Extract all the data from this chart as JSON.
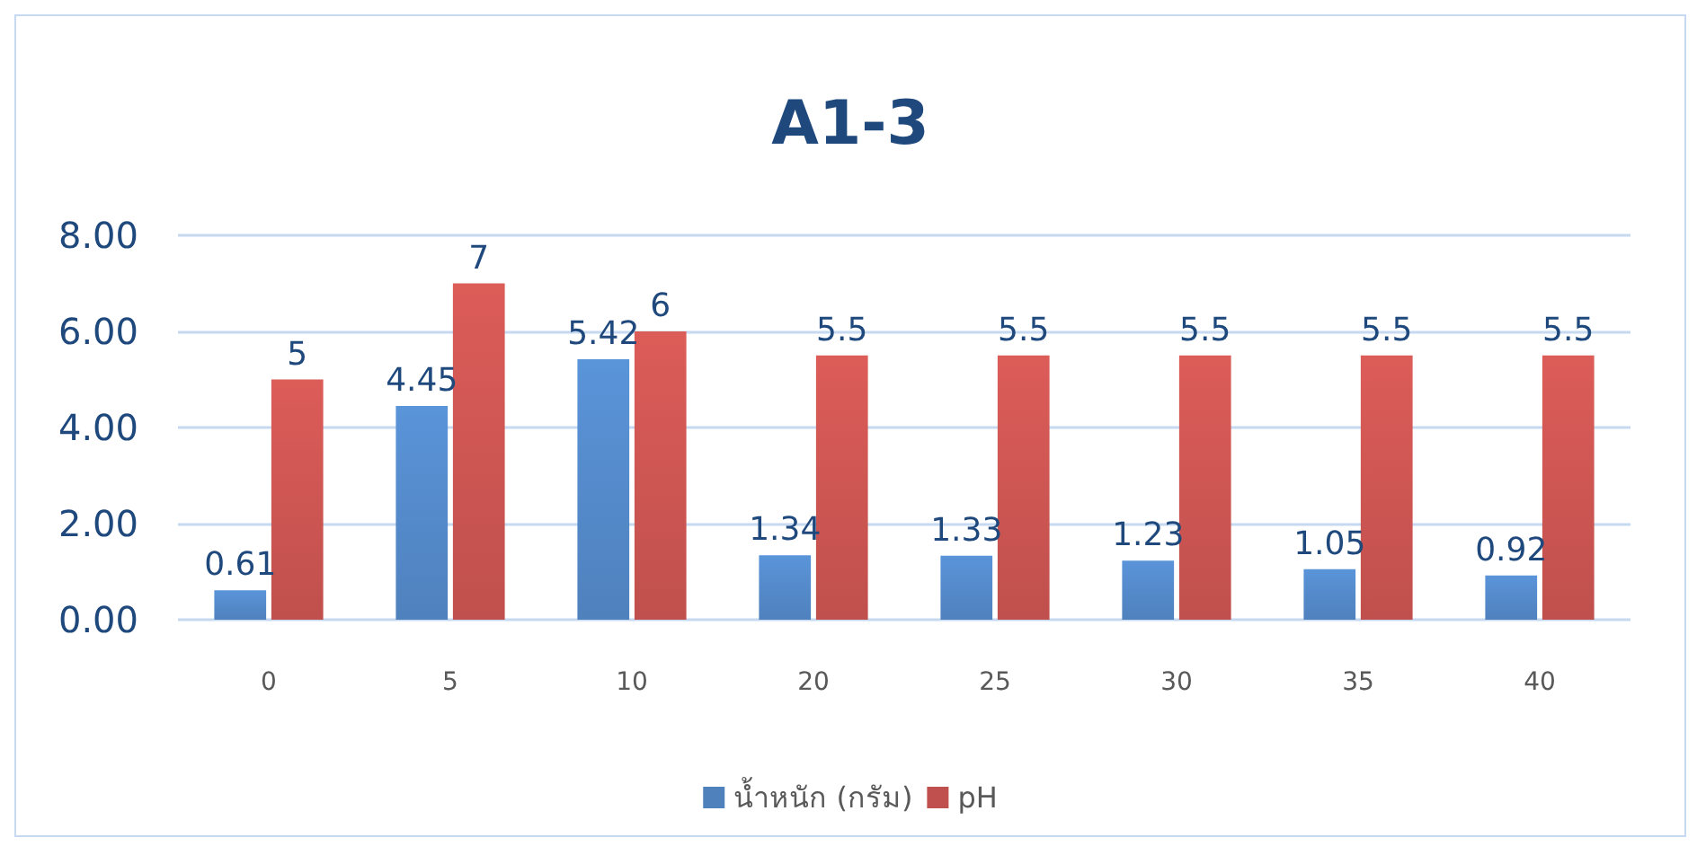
{
  "chart_data": {
    "type": "bar",
    "title": "A1-3",
    "categories": [
      "0",
      "5",
      "10",
      "20",
      "25",
      "30",
      "35",
      "40"
    ],
    "series": [
      {
        "name": "น้ำหนัก (กรัม)",
        "color": "#4f81bd",
        "values": [
          0.61,
          4.45,
          5.42,
          1.34,
          1.33,
          1.23,
          1.05,
          0.92
        ]
      },
      {
        "name": "pH",
        "color": "#c0504d",
        "values": [
          5,
          7,
          6,
          5.5,
          5.5,
          5.5,
          5.5,
          5.5
        ]
      }
    ],
    "ylim": [
      0,
      8
    ],
    "yticks": [
      {
        "value": 0,
        "label": "0.00"
      },
      {
        "value": 2,
        "label": "2.00"
      },
      {
        "value": 4,
        "label": "4.00"
      },
      {
        "value": 6,
        "label": "6.00"
      },
      {
        "value": 8,
        "label": "8.00"
      }
    ],
    "grid": "y",
    "legend": "bottom",
    "data_labels": true
  }
}
